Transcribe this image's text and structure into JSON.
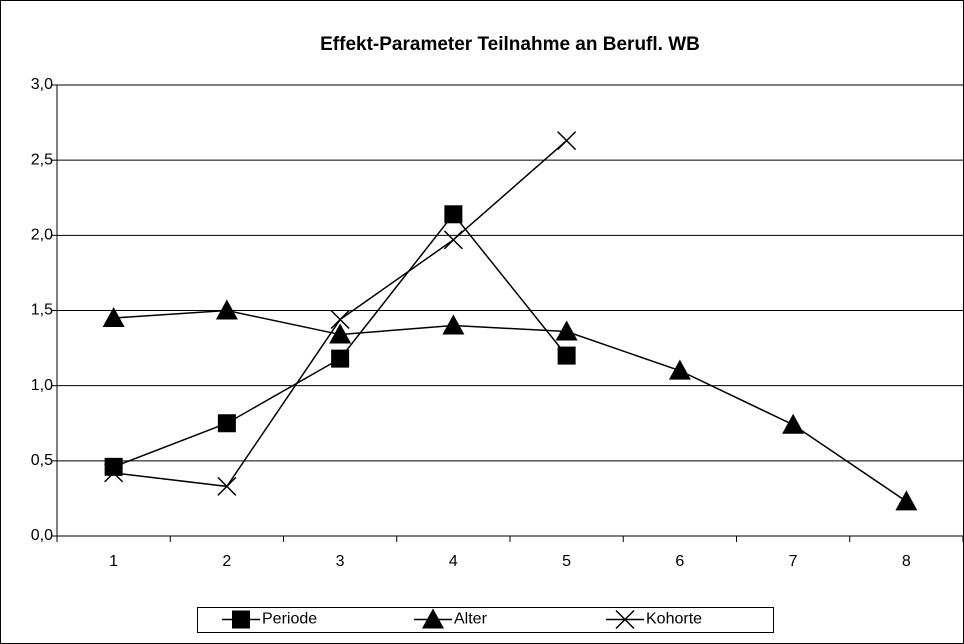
{
  "chart_data": {
    "type": "line",
    "title": "Effekt-Parameter Teilnahme an Berufl. WB",
    "categories": [
      "1",
      "2",
      "3",
      "4",
      "5",
      "6",
      "7",
      "8"
    ],
    "series": [
      {
        "name": "Periode",
        "color": "#000000",
        "marker": "square",
        "values": [
          0.46,
          0.75,
          1.18,
          2.14,
          1.2,
          null,
          null,
          null
        ]
      },
      {
        "name": "Alter",
        "color": "#000000",
        "marker": "triangle",
        "values": [
          1.45,
          1.5,
          1.34,
          1.4,
          1.36,
          1.1,
          0.74,
          0.23
        ]
      },
      {
        "name": "Kohorte",
        "color": "#000000",
        "marker": "x",
        "values": [
          0.42,
          0.33,
          1.44,
          1.97,
          2.63,
          null,
          null,
          null
        ]
      }
    ],
    "ylim": [
      0,
      3
    ],
    "yticks": [
      {
        "value": 0,
        "label": "0,0"
      },
      {
        "value": 0.5,
        "label": "0,5"
      },
      {
        "value": 1,
        "label": "1,0"
      },
      {
        "value": 1.5,
        "label": "1,5"
      },
      {
        "value": 2,
        "label": "2,0"
      },
      {
        "value": 2.5,
        "label": "2,5"
      },
      {
        "value": 3,
        "label": "3,0"
      }
    ],
    "grid": true,
    "legend": "bottom"
  }
}
